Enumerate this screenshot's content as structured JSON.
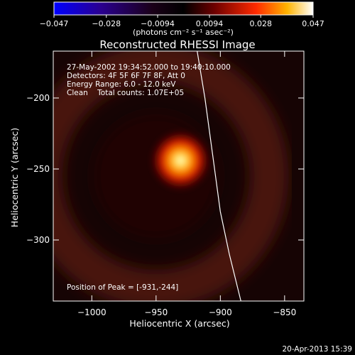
{
  "colorbar": {
    "ticks": [
      -0.047,
      -0.028,
      -0.0094,
      0.0094,
      0.028,
      0.047
    ],
    "tick_labels": [
      "−0.047",
      "−0.028",
      "−0.0094",
      "0.0094",
      "0.028",
      "0.047"
    ],
    "range": [
      -0.047,
      0.047
    ],
    "units_label": "(photons cm⁻² s⁻¹ asec⁻²)"
  },
  "chart_data": {
    "type": "heatmap",
    "title": "Reconstructed RHESSI Image",
    "xlabel": "Heliocentric X (arcsec)",
    "ylabel": "Heliocentric Y (arcsec)",
    "xlim": [
      -1030,
      -835
    ],
    "ylim": [
      -343,
      -167
    ],
    "xticks": [
      -1000,
      -950,
      -900,
      -850
    ],
    "xtick_labels": [
      "−1000",
      "−950",
      "−900",
      "−850"
    ],
    "yticks": [
      -200,
      -250,
      -300
    ],
    "ytick_labels": [
      "−200",
      "−250",
      "−300"
    ],
    "peak": {
      "x": -931,
      "y": -244,
      "value": 0.047
    },
    "ring": {
      "center_x": -950,
      "center_y": -255,
      "radius": 88,
      "value": 0.006
    },
    "limb": [
      {
        "x": -918,
        "y": -167
      },
      {
        "x": -912,
        "y": -200
      },
      {
        "x": -906,
        "y": -240
      },
      {
        "x": -900,
        "y": -280
      },
      {
        "x": -893,
        "y": -310
      },
      {
        "x": -884,
        "y": -343
      }
    ],
    "annotations": [
      "27-May-2002 19:34:52.000 to 19:40:10.000",
      "Detectors: 4F 5F 6F 7F 8F, Att 0",
      "Energy Range: 6.0 - 12.0 keV",
      "Clean    Total counts: 1.07E+05"
    ],
    "peak_label": "Position of Peak = [-931,-244]"
  },
  "footer": {
    "date_stamp": "20-Apr-2013 15:39"
  }
}
